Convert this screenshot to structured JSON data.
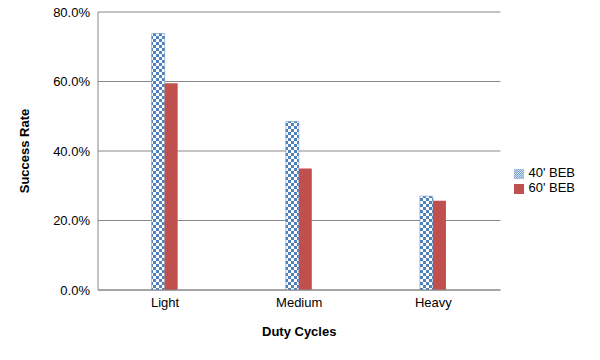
{
  "chart_data": {
    "type": "bar",
    "x_label": "Duty Cycles",
    "y_label": "Success Rate",
    "categories": [
      "Light",
      "Medium",
      "Heavy"
    ],
    "series": [
      {
        "name": "40' BEB",
        "color": "#4f81bd",
        "values": [
          73.8,
          48.5,
          27.0
        ]
      },
      {
        "name": "60' BEB",
        "color": "#c0504d",
        "values": [
          59.5,
          35.0,
          25.7
        ]
      }
    ],
    "ylim": [
      0,
      80
    ],
    "yticks": [
      {
        "value": 0,
        "label": "0.0%"
      },
      {
        "value": 20,
        "label": "20.0%"
      },
      {
        "value": 40,
        "label": "40.0%"
      },
      {
        "value": 60,
        "label": "60.0%"
      },
      {
        "value": 80,
        "label": "80.0%"
      }
    ],
    "grid": true,
    "legend": "right"
  }
}
